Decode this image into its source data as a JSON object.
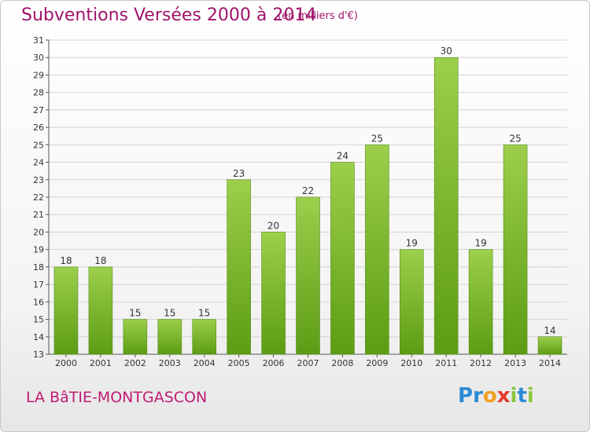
{
  "header": {
    "title": "Subventions Versées 2000 à 2014",
    "unit_note": "(en milliers d'€)"
  },
  "footer": {
    "place": "LA BâTIE-MONTGASCON",
    "logo_letters": [
      {
        "ch": "P",
        "color": "#2a8ad4"
      },
      {
        "ch": "r",
        "color": "#2a8ad4"
      },
      {
        "ch": "o",
        "color": "#f0a020"
      },
      {
        "ch": "x",
        "color": "#e23a2a"
      },
      {
        "ch": "i",
        "color": "#8cc63f"
      },
      {
        "ch": "t",
        "color": "#2a8ad4"
      },
      {
        "ch": "i",
        "color": "#8cc63f"
      }
    ]
  },
  "colors": {
    "bar_top": "#9ccf4c",
    "bar_bottom": "#5c9c14",
    "grid": "#d4d4d4",
    "title": "#a0146a"
  },
  "chart_data": {
    "type": "bar",
    "title": "Subventions Versées 2000 à 2014",
    "subtitle": "(en milliers d'€)",
    "categories": [
      "2000",
      "2001",
      "2002",
      "2003",
      "2004",
      "2005",
      "2006",
      "2007",
      "2008",
      "2009",
      "2010",
      "2011",
      "2012",
      "2013",
      "2014"
    ],
    "values": [
      18,
      18,
      15,
      15,
      15,
      23,
      20,
      22,
      24,
      25,
      19,
      30,
      19,
      25,
      14
    ],
    "ylim": [
      13,
      31
    ],
    "yticks": [
      13,
      14,
      15,
      16,
      17,
      18,
      19,
      20,
      21,
      22,
      23,
      24,
      25,
      26,
      27,
      28,
      29,
      30,
      31
    ],
    "grid": true,
    "data_labels": true
  }
}
